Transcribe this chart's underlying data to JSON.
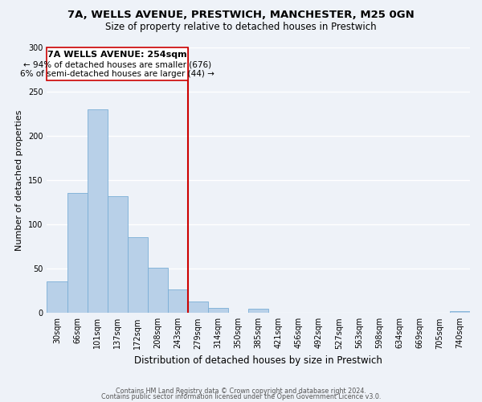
{
  "title": "7A, WELLS AVENUE, PRESTWICH, MANCHESTER, M25 0GN",
  "subtitle": "Size of property relative to detached houses in Prestwich",
  "xlabel": "Distribution of detached houses by size in Prestwich",
  "ylabel": "Number of detached properties",
  "bin_labels": [
    "30sqm",
    "66sqm",
    "101sqm",
    "137sqm",
    "172sqm",
    "208sqm",
    "243sqm",
    "279sqm",
    "314sqm",
    "350sqm",
    "385sqm",
    "421sqm",
    "456sqm",
    "492sqm",
    "527sqm",
    "563sqm",
    "598sqm",
    "634sqm",
    "669sqm",
    "705sqm",
    "740sqm"
  ],
  "bar_heights": [
    36,
    136,
    230,
    132,
    86,
    51,
    27,
    13,
    6,
    0,
    5,
    0,
    0,
    0,
    0,
    0,
    0,
    0,
    0,
    0,
    2
  ],
  "bar_color": "#b8d0e8",
  "bar_edge_color": "#7aaed6",
  "vline_x_index": 6,
  "vline_color": "#cc0000",
  "annotation_title": "7A WELLS AVENUE: 254sqm",
  "annotation_line1": "← 94% of detached houses are smaller (676)",
  "annotation_line2": "6% of semi-detached houses are larger (44) →",
  "annotation_box_color": "#ffffff",
  "annotation_box_edge": "#cc0000",
  "ylim": [
    0,
    300
  ],
  "yticks": [
    0,
    50,
    100,
    150,
    200,
    250,
    300
  ],
  "footer_line1": "Contains HM Land Registry data © Crown copyright and database right 2024.",
  "footer_line2": "Contains public sector information licensed under the Open Government Licence v3.0.",
  "bg_color": "#eef2f8"
}
